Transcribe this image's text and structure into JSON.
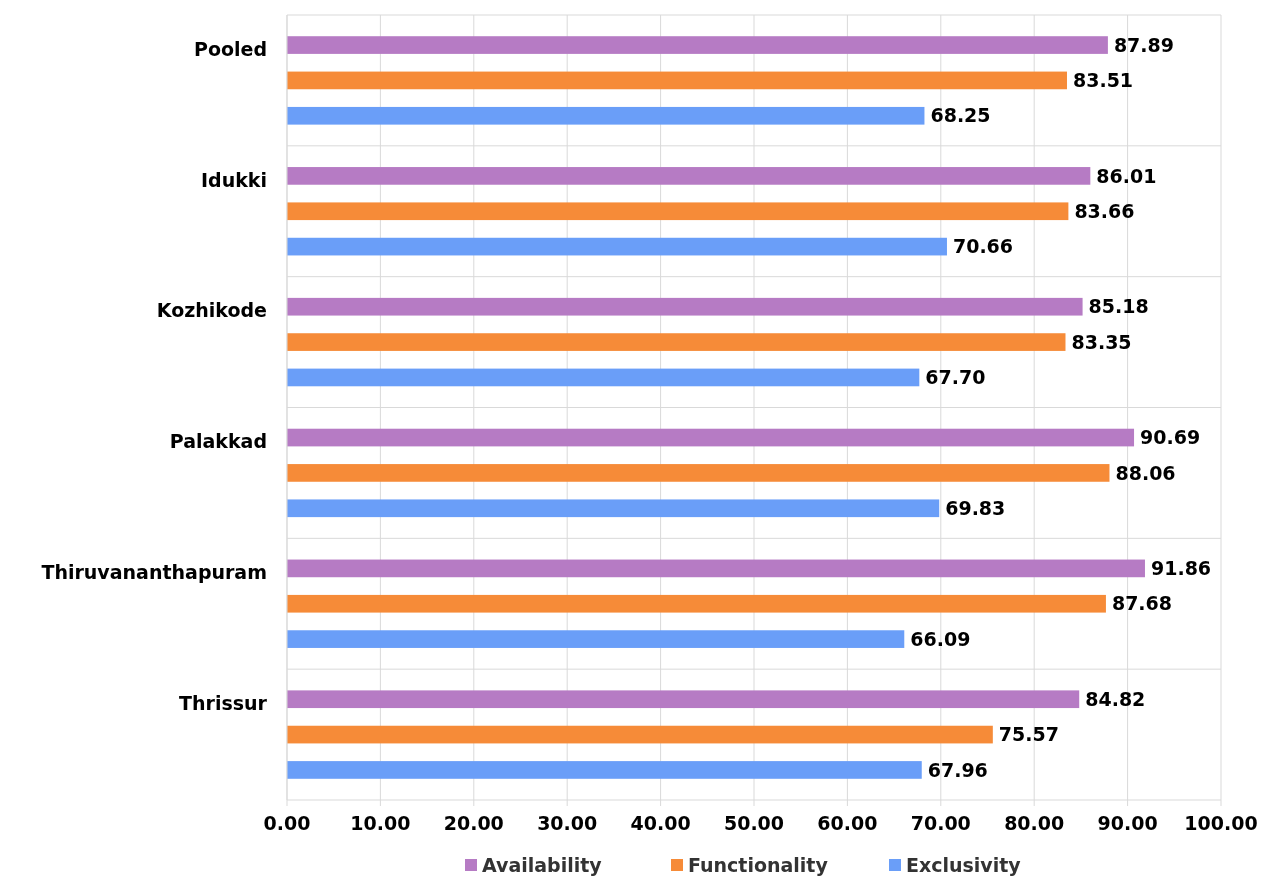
{
  "chart_data": {
    "type": "bar",
    "orientation": "horizontal",
    "categories": [
      "Pooled",
      "Idukki",
      "Kozhikode",
      "Palakkad",
      "Thiruvananthapuram",
      "Thrissur"
    ],
    "series": [
      {
        "name": "Availability",
        "color": "#b67bc4",
        "values": [
          87.89,
          86.01,
          85.18,
          90.69,
          91.86,
          84.82
        ],
        "value_labels": [
          "87.89",
          "86.01",
          "85.18",
          "90.69",
          "91.86",
          "84.82"
        ]
      },
      {
        "name": "Functionality",
        "color": "#f68b38",
        "values": [
          83.51,
          83.66,
          83.35,
          88.06,
          87.68,
          75.57
        ],
        "value_labels": [
          "83.51",
          "83.66",
          "83.35",
          "88.06",
          "87.68",
          "75.57"
        ]
      },
      {
        "name": "Exclusivity",
        "color": "#6a9ef8",
        "values": [
          68.25,
          70.66,
          67.7,
          69.83,
          66.09,
          67.96
        ],
        "value_labels": [
          "68.25",
          "70.66",
          "67.70",
          "69.83",
          "66.09",
          "67.96"
        ]
      }
    ],
    "xlim": [
      0,
      100
    ],
    "xticks": [
      {
        "value": 0,
        "label": "0.00"
      },
      {
        "value": 10,
        "label": "10.00"
      },
      {
        "value": 20,
        "label": "20.00"
      },
      {
        "value": 30,
        "label": "30.00"
      },
      {
        "value": 40,
        "label": "40.00"
      },
      {
        "value": 50,
        "label": "50.00"
      },
      {
        "value": 60,
        "label": "60.00"
      },
      {
        "value": 70,
        "label": "70.00"
      },
      {
        "value": 80,
        "label": "80.00"
      },
      {
        "value": 90,
        "label": "90.00"
      },
      {
        "value": 100,
        "label": "100.00"
      }
    ],
    "grid": true,
    "legend": "bottom"
  }
}
